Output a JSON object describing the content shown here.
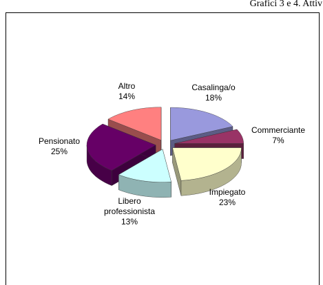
{
  "chart_data": {
    "type": "pie",
    "title": "Grafici 3 e 4. Attiv",
    "categories": [
      "Casalinga/o",
      "Commerciante",
      "Impiegato",
      "Libero professionista",
      "Pensionato",
      "Altro"
    ],
    "values": [
      18,
      7,
      23,
      13,
      25,
      14
    ],
    "value_labels": [
      "18%",
      "7%",
      "23%",
      "13%",
      "25%",
      "14%"
    ],
    "colors": [
      "#9999dd",
      "#993366",
      "#ffffcc",
      "#ccffff",
      "#660066",
      "#ff8080"
    ]
  }
}
